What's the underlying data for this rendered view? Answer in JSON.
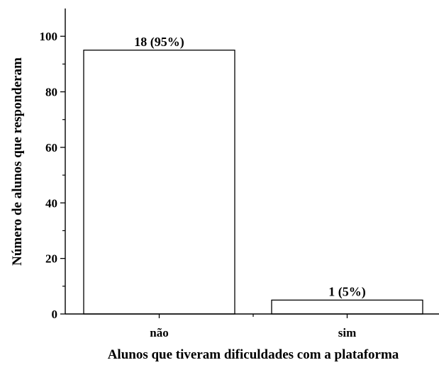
{
  "chart_data": {
    "type": "bar",
    "categories": [
      "não",
      "sim"
    ],
    "values": [
      95,
      5
    ],
    "data_labels": [
      "18 (95%)",
      "1 (5%)"
    ],
    "title": "",
    "xlabel": "Alunos que tiveram dificuldades com a plataforma",
    "ylabel": "Número de alunos que responderam",
    "ylim": [
      0,
      110
    ],
    "yticks": [
      0,
      20,
      40,
      60,
      80,
      100
    ],
    "yticks_labels": [
      "0",
      "20",
      "40",
      "60",
      "80",
      "100"
    ],
    "bar_fill": "#ffffff",
    "bar_stroke": "#000000",
    "grid": false,
    "legend": "none"
  }
}
